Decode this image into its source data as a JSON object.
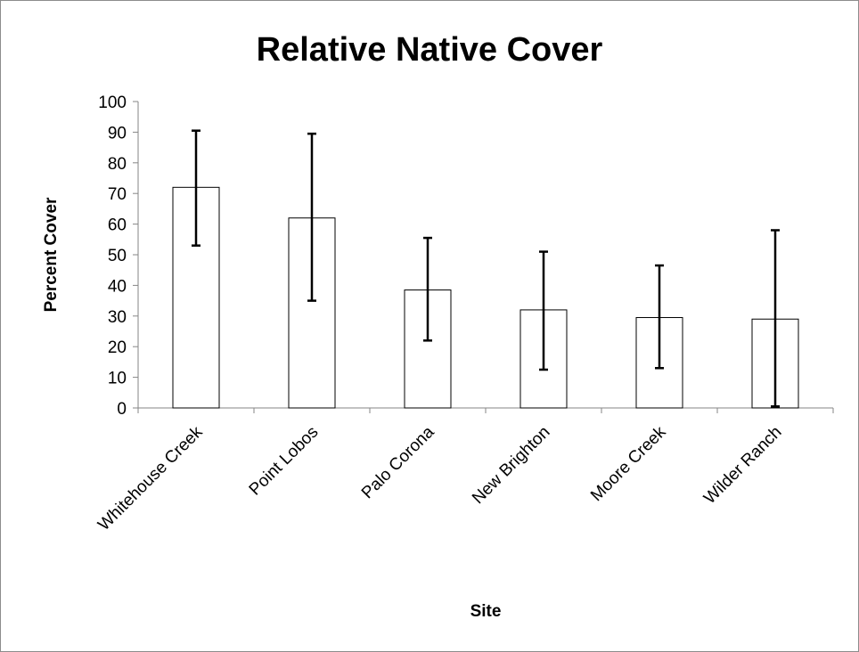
{
  "chart_data": {
    "type": "bar",
    "title": "Relative Native Cover",
    "xlabel": "Site",
    "ylabel": "Percent Cover",
    "categories": [
      "Whitehouse Creek",
      "Point Lobos",
      "Palo Corona",
      "New Brighton",
      "Moore Creek",
      "Wilder Ranch"
    ],
    "values": [
      72,
      62,
      38.5,
      32,
      29.5,
      29
    ],
    "error_low": [
      53,
      35,
      22,
      12.5,
      13,
      0.5
    ],
    "error_high": [
      90.5,
      89.5,
      55.5,
      51,
      46.5,
      58
    ],
    "ylim": [
      0,
      100
    ],
    "yticks": [
      0,
      10,
      20,
      30,
      40,
      50,
      60,
      70,
      80,
      90,
      100
    ],
    "grid": false,
    "legend": "none",
    "bar_fill": "#ffffff",
    "bar_stroke": "#000000"
  }
}
